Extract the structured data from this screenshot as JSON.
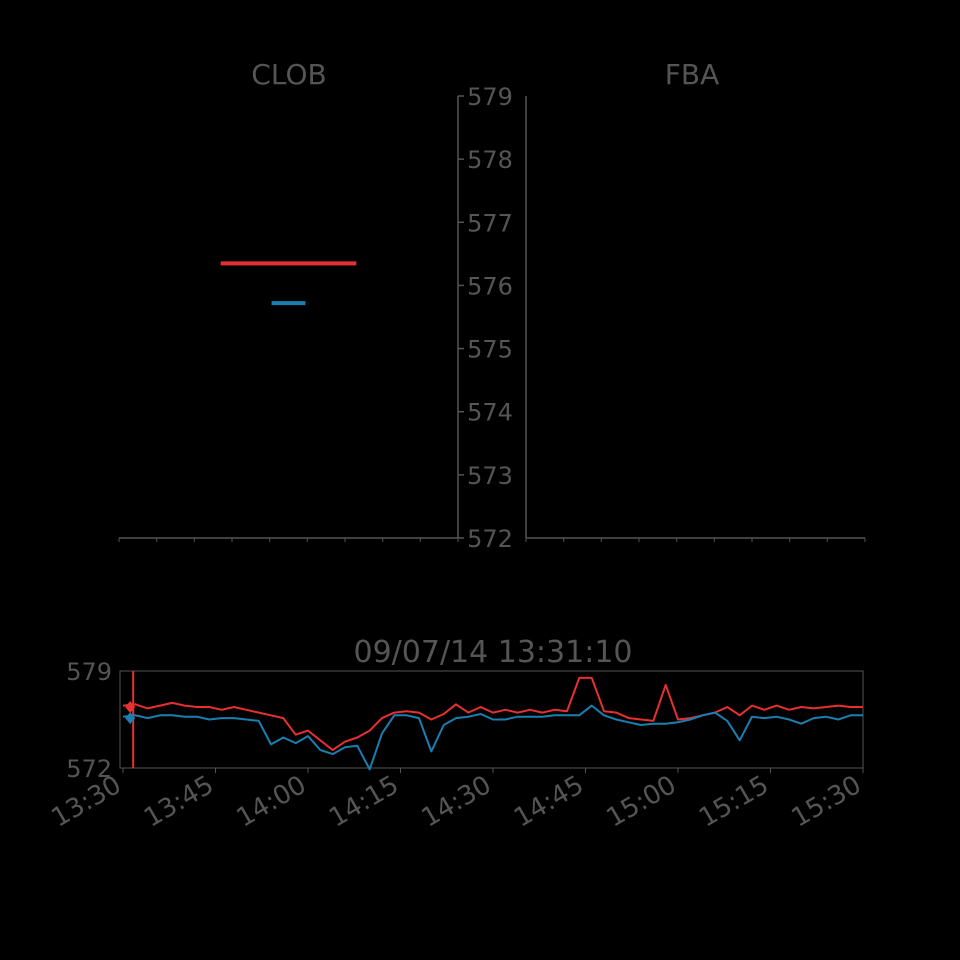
{
  "colors": {
    "background": "#000000",
    "axis": "#555555",
    "text": "#555555",
    "red": "#e83030",
    "blue": "#1a7fb0"
  },
  "chart_data": [
    {
      "panel": "CLOB",
      "type": "line",
      "title": "CLOB",
      "ylim": [
        572,
        579
      ],
      "yticks": [
        "572",
        "573",
        "574",
        "575",
        "576",
        "577",
        "578",
        "579"
      ],
      "series": [
        {
          "color": "#e83030",
          "y": 576.35,
          "extent": [
            0.3,
            0.7
          ]
        },
        {
          "color": "#1a7fb0",
          "y": 575.72,
          "extent": [
            0.45,
            0.55
          ]
        }
      ]
    },
    {
      "panel": "FBA",
      "type": "line",
      "title": "FBA",
      "ylim": [
        572,
        579
      ],
      "series": []
    },
    {
      "panel": "timeline",
      "type": "line",
      "title": "09/07/14 13:31:10",
      "xlim": [
        "13:30",
        "15:30"
      ],
      "ylim": [
        572,
        579
      ],
      "yticks": [
        "572",
        "579"
      ],
      "xticks": [
        "13:30",
        "13:45",
        "14:00",
        "14:15",
        "14:30",
        "14:45",
        "15:00",
        "15:15",
        "15:30"
      ],
      "cursor": "13:31:10",
      "series": [
        {
          "color": "#e83030",
          "x_min": [
            0,
            2,
            4,
            6,
            8,
            10,
            12,
            14,
            16,
            18,
            20,
            22,
            24,
            26,
            28,
            30,
            32,
            34,
            36,
            38,
            40,
            42,
            44,
            46,
            48,
            50,
            52,
            54,
            56,
            58,
            60,
            62,
            64,
            66,
            68,
            70,
            72,
            74,
            76,
            78,
            80,
            82,
            84,
            86,
            88,
            90,
            92,
            94,
            96,
            98,
            100,
            102,
            104,
            106,
            108,
            110,
            112,
            114,
            116,
            118,
            120
          ],
          "y": [
            576.5,
            576.6,
            576.3,
            576.5,
            576.7,
            576.5,
            576.4,
            576.4,
            576.2,
            576.4,
            576.2,
            576.0,
            575.8,
            575.6,
            574.4,
            574.7,
            574.0,
            573.3,
            573.9,
            574.2,
            574.7,
            575.6,
            576.0,
            576.1,
            576.0,
            575.5,
            575.9,
            576.6,
            576.0,
            576.4,
            576.0,
            576.2,
            576.0,
            576.2,
            576.0,
            576.2,
            576.1,
            578.5,
            578.5,
            576.1,
            576.0,
            575.6,
            575.5,
            575.4,
            578.0,
            575.5,
            575.6,
            575.8,
            576.0,
            576.4,
            575.8,
            576.5,
            576.2,
            576.5,
            576.2,
            576.4,
            576.3,
            576.4,
            576.5,
            576.4,
            576.4
          ]
        },
        {
          "color": "#1a7fb0",
          "x_min": [
            0,
            2,
            4,
            6,
            8,
            10,
            12,
            14,
            16,
            18,
            20,
            22,
            24,
            26,
            28,
            30,
            32,
            34,
            36,
            38,
            40,
            42,
            44,
            46,
            48,
            50,
            52,
            54,
            56,
            58,
            60,
            62,
            64,
            66,
            68,
            70,
            72,
            74,
            76,
            78,
            80,
            82,
            84,
            86,
            88,
            90,
            92,
            94,
            96,
            98,
            100,
            102,
            104,
            106,
            108,
            110,
            112,
            114,
            116,
            118,
            120
          ],
          "y": [
            575.7,
            575.8,
            575.6,
            575.8,
            575.8,
            575.7,
            575.7,
            575.5,
            575.6,
            575.6,
            575.5,
            575.4,
            573.7,
            574.2,
            573.8,
            574.3,
            573.3,
            573.0,
            573.5,
            573.6,
            571.9,
            574.5,
            575.8,
            575.8,
            575.6,
            573.2,
            575.1,
            575.6,
            575.7,
            575.9,
            575.5,
            575.5,
            575.7,
            575.7,
            575.7,
            575.8,
            575.8,
            575.8,
            576.5,
            575.8,
            575.5,
            575.3,
            575.1,
            575.2,
            575.2,
            575.3,
            575.5,
            575.8,
            576.0,
            575.4,
            574.0,
            575.7,
            575.6,
            575.7,
            575.5,
            575.2,
            575.6,
            575.7,
            575.5,
            575.8,
            575.8
          ]
        }
      ]
    }
  ]
}
